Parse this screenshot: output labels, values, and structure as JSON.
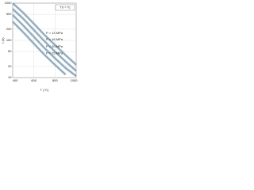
{
  "chart_data": {
    "type": "line",
    "x_label": "T (°C)",
    "y_label": "t (h)",
    "annotation": "Tb = Tc",
    "x": [
      400,
      500,
      600,
      700,
      800,
      900,
      1000
    ],
    "series": [
      {
        "name": "P = 13 MPa",
        "color": "#8fb0c8",
        "values": [
          1000,
          550,
          280,
          140,
          75,
          40,
          22
        ]
      },
      {
        "name": "P = 16 MPa",
        "color": "#8fb0c8",
        "values": [
          700,
          380,
          190,
          95,
          50,
          27,
          15
        ]
      },
      {
        "name": "P = 20 MPa",
        "color": "#8fb0c8",
        "values": [
          480,
          250,
          125,
          62,
          33,
          18,
          11
        ]
      },
      {
        "name": "P = 25 MPa",
        "color": "#8fb0c8",
        "values": [
          320,
          165,
          82,
          41,
          22,
          12,
          null
        ]
      }
    ],
    "xlim": [
      400,
      1000
    ],
    "xticks": [
      400,
      600,
      800,
      1000
    ],
    "ylim": [
      10,
      1000
    ],
    "yticks": [
      10,
      20,
      50,
      100,
      200,
      500,
      1000
    ],
    "log_y": true,
    "grid": true
  }
}
